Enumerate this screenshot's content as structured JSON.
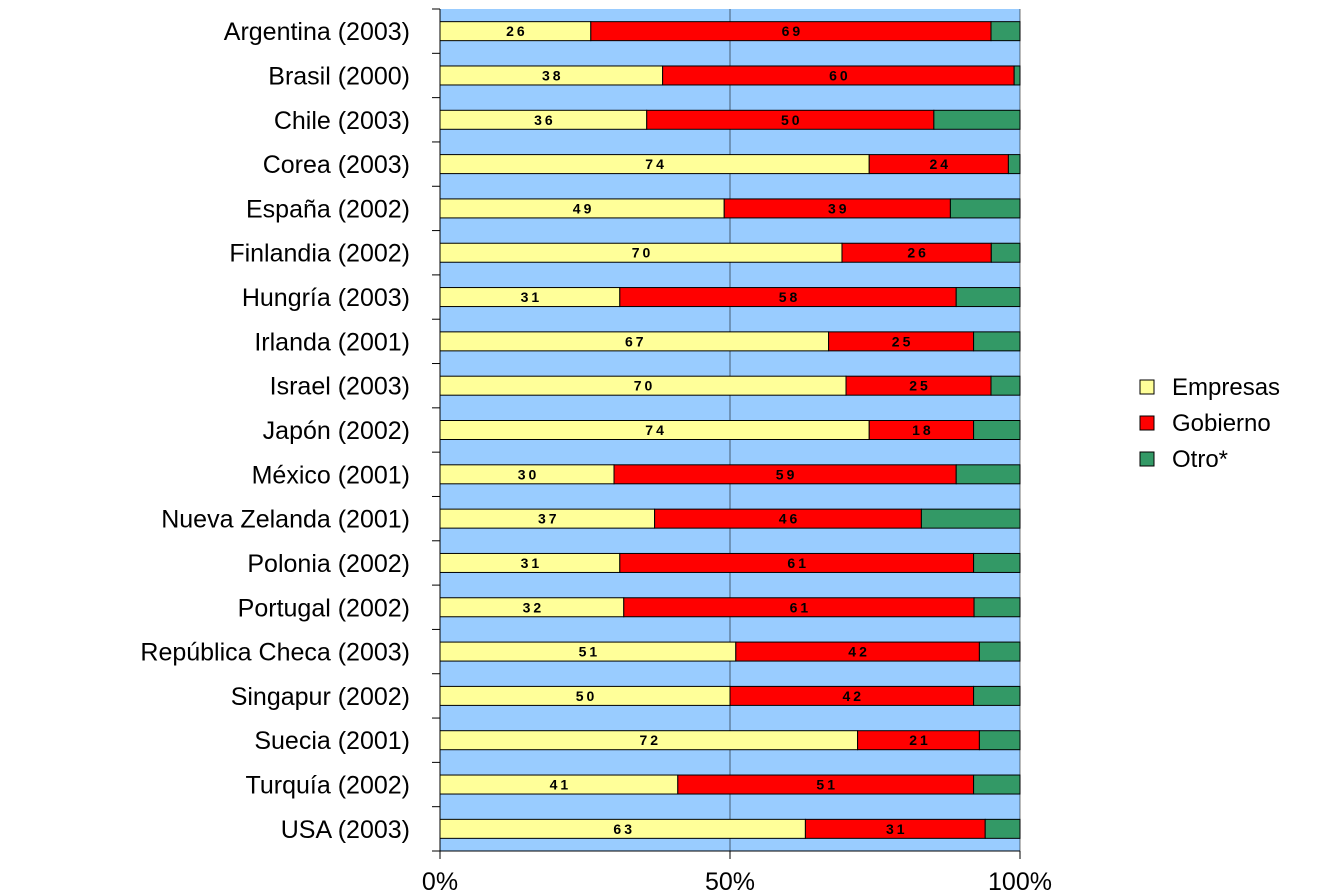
{
  "chart_data": {
    "type": "bar",
    "orientation": "horizontal",
    "stacked": "percent",
    "categories": [
      "Argentina (2003)",
      "Brasil (2000)",
      "Chile (2003)",
      "Corea (2003)",
      "España (2002)",
      "Finlandia (2002)",
      "Hungría (2003)",
      "Irlanda (2001)",
      "Israel (2003)",
      "Japón (2002)",
      "México (2001)",
      "Nueva Zelanda (2001)",
      "Polonia (2002)",
      "Portugal (2002)",
      "República Checa (2003)",
      "Singapur (2002)",
      "Suecia (2001)",
      "Turquía (2002)",
      "USA (2003)"
    ],
    "series": [
      {
        "name": "Empresas",
        "color": "#ffff99",
        "values": [
          26,
          38,
          36,
          74,
          49,
          70,
          31,
          67,
          70,
          74,
          30,
          37,
          31,
          32,
          51,
          50,
          72,
          41,
          63
        ]
      },
      {
        "name": "Gobierno",
        "color": "#ff0000",
        "values": [
          69,
          60,
          50,
          24,
          39,
          26,
          58,
          25,
          25,
          18,
          59,
          46,
          61,
          61,
          42,
          42,
          21,
          51,
          31
        ]
      },
      {
        "name": "Otro*",
        "color": "#339966",
        "values": [
          5,
          1,
          15,
          2,
          12,
          5,
          11,
          8,
          5,
          8,
          11,
          17,
          8,
          8,
          7,
          8,
          7,
          8,
          6
        ]
      }
    ],
    "labeled_series": [
      "Empresas",
      "Gobierno"
    ],
    "x_ticks": [
      "0%",
      "50%",
      "100%"
    ],
    "xlim": [
      0,
      100
    ],
    "plot_background": "#99ccff",
    "grid": true,
    "legend_position": "right",
    "title": "",
    "xlabel": "",
    "ylabel": ""
  }
}
